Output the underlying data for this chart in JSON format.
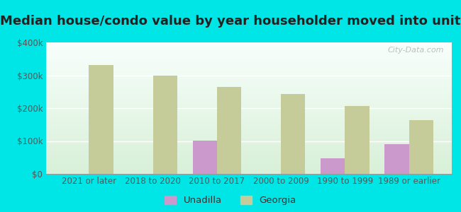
{
  "title": "Median house/condo value by year householder moved into unit",
  "categories": [
    "2021 or later",
    "2018 to 2020",
    "2010 to 2017",
    "2000 to 2009",
    "1990 to 1999",
    "1989 or earlier"
  ],
  "unadilla_values": [
    0,
    0,
    102000,
    0,
    48000,
    90000
  ],
  "georgia_values": [
    332000,
    298000,
    265000,
    242000,
    207000,
    163000
  ],
  "unadilla_color": "#cc99cc",
  "georgia_color": "#c5cc99",
  "background_outer": "#00e5e5",
  "background_inner_top": "#f8fffc",
  "background_inner_bottom": "#d8f0d8",
  "ylim": [
    0,
    400000
  ],
  "yticks": [
    0,
    100000,
    200000,
    300000,
    400000
  ],
  "ytick_labels": [
    "$0",
    "$100k",
    "$200k",
    "$300k",
    "$400k"
  ],
  "watermark_text": "City-Data.com",
  "legend_labels": [
    "Unadilla",
    "Georgia"
  ],
  "title_fontsize": 13,
  "tick_fontsize": 8.5,
  "title_color": "#222222"
}
